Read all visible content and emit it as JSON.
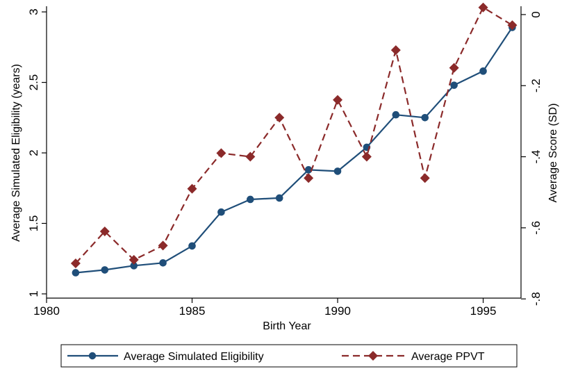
{
  "chart_data": {
    "type": "line",
    "xlabel": "Birth Year",
    "ylabel": "Average Simulated Eligibility (years)",
    "y2label": "Average Score (SD)",
    "xlim": [
      1980,
      1996.3
    ],
    "ylim": [
      0.97,
      3.04
    ],
    "y2lim": [
      -0.7978,
      0.0234
    ],
    "x_ticks": [
      1980,
      1985,
      1990,
      1995
    ],
    "y_ticks": [
      1,
      1.5,
      2,
      2.5,
      3
    ],
    "y_tick_labels": [
      "1",
      "1.5",
      "2",
      "2.5",
      "3"
    ],
    "y2_ticks": [
      -0.8,
      -0.6,
      -0.4,
      -0.2,
      0
    ],
    "y2_tick_labels": [
      "-.8",
      "-.6",
      "-.4",
      "-.2",
      "0"
    ],
    "grid": false,
    "legend_position": "bottom",
    "x": [
      1981,
      1982,
      1983,
      1984,
      1985,
      1986,
      1987,
      1988,
      1989,
      1990,
      1991,
      1992,
      1993,
      1994,
      1995,
      1996
    ],
    "series": [
      {
        "name": "Average Simulated Eligibility",
        "axis": "left",
        "color": "#1f4e79",
        "style": "solid",
        "marker": "circle",
        "values": [
          1.15,
          1.17,
          1.2,
          1.22,
          1.34,
          1.58,
          1.67,
          1.68,
          1.88,
          1.87,
          2.04,
          2.27,
          2.25,
          2.48,
          2.58,
          2.89
        ]
      },
      {
        "name": "Average PPVT",
        "axis": "right",
        "color": "#8b2a2a",
        "style": "dashed",
        "marker": "diamond",
        "values": [
          -0.7,
          -0.61,
          -0.69,
          -0.65,
          -0.49,
          -0.39,
          -0.4,
          -0.29,
          -0.46,
          -0.24,
          -0.4,
          -0.1,
          -0.46,
          -0.15,
          0.02,
          -0.03
        ]
      }
    ]
  }
}
